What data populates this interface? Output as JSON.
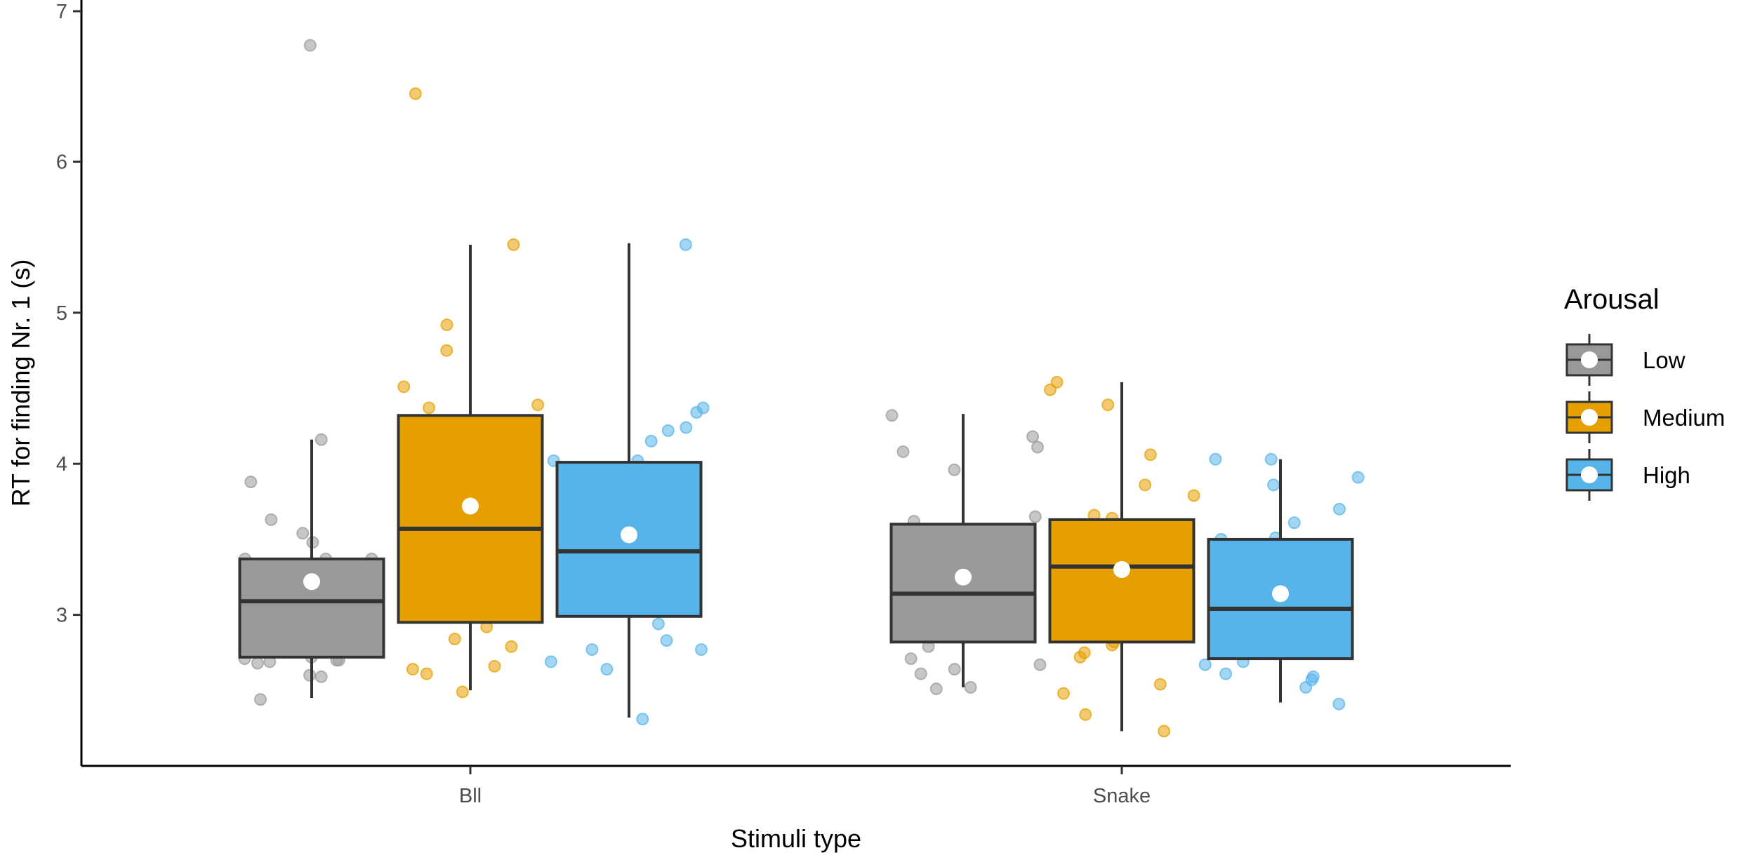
{
  "chart_data": {
    "type": "boxplot",
    "xlabel": "Stimuli type",
    "ylabel": "RT for finding Nr. 1 (s)",
    "ylim": [
      2.0,
      7.07
    ],
    "yticks": [
      "3",
      "4",
      "5",
      "6",
      "7"
    ],
    "categories": [
      "Bll",
      "Snake"
    ],
    "grid": false,
    "legend": {
      "title": "Arousal",
      "placement": "right"
    },
    "series": [
      {
        "name": "Low",
        "color": "#999999",
        "boxes": [
          {
            "whisker_low": 2.45,
            "q1": 2.72,
            "median": 3.09,
            "q3": 3.37,
            "whisker_high": 4.16,
            "mean": 3.22,
            "points": [
              6.77,
              4.16,
              3.88,
              3.63,
              3.54,
              3.48,
              3.37,
              3.37,
              3.37,
              3.09,
              3.09,
              3.1,
              2.7,
              2.71,
              2.72,
              2.69,
              2.7,
              2.68,
              2.59,
              2.6,
              2.44
            ]
          },
          {
            "whisker_low": 2.52,
            "q1": 2.82,
            "median": 3.14,
            "q3": 3.6,
            "whisker_high": 4.33,
            "mean": 3.25,
            "points": [
              4.32,
              4.18,
              4.11,
              4.08,
              3.96,
              3.65,
              3.62,
              3.14,
              3.14,
              3.12,
              2.79,
              2.71,
              2.67,
              2.64,
              2.61,
              2.52,
              2.51
            ]
          }
        ]
      },
      {
        "name": "Medium",
        "color": "#E69F00",
        "boxes": [
          {
            "whisker_low": 2.5,
            "q1": 2.95,
            "median": 3.57,
            "q3": 4.32,
            "whisker_high": 5.45,
            "mean": 3.72,
            "points": [
              6.45,
              5.45,
              4.92,
              4.75,
              4.51,
              4.39,
              4.37,
              3.57,
              3.57,
              3.37,
              2.92,
              2.84,
              2.79,
              2.66,
              2.64,
              2.61,
              2.49
            ]
          },
          {
            "whisker_low": 2.23,
            "q1": 2.82,
            "median": 3.32,
            "q3": 3.63,
            "whisker_high": 4.54,
            "mean": 3.3,
            "points": [
              4.54,
              4.49,
              4.39,
              4.06,
              3.86,
              3.79,
              3.66,
              3.64,
              3.46,
              3.35,
              3.29,
              2.82,
              2.8,
              2.75,
              2.72,
              2.54,
              2.48,
              2.34,
              2.23
            ]
          }
        ]
      },
      {
        "name": "High",
        "color": "#56B4E9",
        "boxes": [
          {
            "whisker_low": 2.32,
            "q1": 2.99,
            "median": 3.42,
            "q3": 4.01,
            "whisker_high": 5.46,
            "mean": 3.53,
            "points": [
              5.45,
              4.37,
              4.34,
              4.24,
              4.22,
              4.15,
              4.02,
              4.02,
              3.81,
              3.47,
              3.42,
              3.37,
              2.94,
              2.83,
              2.77,
              2.77,
              2.69,
              2.64,
              2.31
            ]
          },
          {
            "whisker_low": 2.42,
            "q1": 2.71,
            "median": 3.04,
            "q3": 3.5,
            "whisker_high": 4.03,
            "mean": 3.14,
            "points": [
              4.03,
              4.03,
              3.91,
              3.86,
              3.7,
              3.61,
              3.51,
              3.5,
              3.45,
              2.75,
              2.69,
              2.67,
              2.61,
              2.59,
              2.57,
              2.52,
              2.41
            ]
          }
        ]
      }
    ]
  }
}
